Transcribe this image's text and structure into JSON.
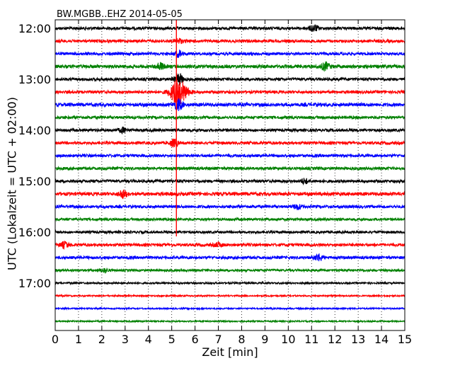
{
  "chart_data": {
    "type": "line",
    "title": "BW.MGBB..EHZ 2014-05-05",
    "xlabel": "Zeit  [min]",
    "ylabel": "UTC (Lokalzeit = UTC + 02:00)",
    "xlim": [
      0,
      15
    ],
    "x_ticks": [
      "0",
      "1",
      "2",
      "3",
      "4",
      "5",
      "6",
      "7",
      "8",
      "9",
      "10",
      "11",
      "12",
      "13",
      "14",
      "15"
    ],
    "y_ticks": [
      {
        "label": "12:00",
        "row": 0
      },
      {
        "label": "13:00",
        "row": 4
      },
      {
        "label": "14:00",
        "row": 8
      },
      {
        "label": "15:00",
        "row": 12
      },
      {
        "label": "16:00",
        "row": 16
      },
      {
        "label": "17:00",
        "row": 20
      }
    ],
    "row_interval_minutes": 15,
    "row_colors": [
      "#000000",
      "#ff0000",
      "#0000ff",
      "#008000"
    ],
    "traces": [
      {
        "start": "12:00",
        "amplitude": 1.0,
        "bursts": [
          {
            "t": 11.1,
            "amp": 2.2
          }
        ]
      },
      {
        "start": "12:15",
        "amplitude": 1.0,
        "bursts": [
          {
            "t": 5.3,
            "amp": 1.6
          }
        ]
      },
      {
        "start": "12:30",
        "amplitude": 1.0,
        "bursts": [
          {
            "t": 5.3,
            "amp": 2.0
          }
        ]
      },
      {
        "start": "12:45",
        "amplitude": 1.2,
        "bursts": [
          {
            "t": 4.5,
            "amp": 2.2
          },
          {
            "t": 11.6,
            "amp": 2.5
          }
        ]
      },
      {
        "start": "13:00",
        "amplitude": 1.0,
        "bursts": [
          {
            "t": 5.3,
            "amp": 4.0
          }
        ]
      },
      {
        "start": "13:15",
        "amplitude": 1.0,
        "bursts": [
          {
            "t": 5.3,
            "amp": 9.0
          }
        ]
      },
      {
        "start": "13:30",
        "amplitude": 1.2,
        "bursts": [
          {
            "t": 5.3,
            "amp": 3.5
          }
        ]
      },
      {
        "start": "13:45",
        "amplitude": 1.0,
        "bursts": []
      },
      {
        "start": "14:00",
        "amplitude": 1.0,
        "bursts": [
          {
            "t": 2.9,
            "amp": 1.6
          }
        ]
      },
      {
        "start": "14:15",
        "amplitude": 1.0,
        "bursts": [
          {
            "t": 5.1,
            "amp": 2.5
          }
        ]
      },
      {
        "start": "14:30",
        "amplitude": 1.0,
        "bursts": []
      },
      {
        "start": "14:45",
        "amplitude": 1.0,
        "bursts": []
      },
      {
        "start": "15:00",
        "amplitude": 1.0,
        "bursts": [
          {
            "t": 10.7,
            "amp": 1.6
          }
        ]
      },
      {
        "start": "15:15",
        "amplitude": 1.2,
        "bursts": [
          {
            "t": 2.9,
            "amp": 2.5
          }
        ]
      },
      {
        "start": "15:30",
        "amplitude": 1.0,
        "bursts": [
          {
            "t": 10.4,
            "amp": 1.6
          }
        ]
      },
      {
        "start": "15:45",
        "amplitude": 0.9,
        "bursts": []
      },
      {
        "start": "16:00",
        "amplitude": 0.9,
        "bursts": []
      },
      {
        "start": "16:15",
        "amplitude": 1.0,
        "bursts": [
          {
            "t": 0.4,
            "amp": 2.0
          },
          {
            "t": 7.0,
            "amp": 1.4
          }
        ]
      },
      {
        "start": "16:30",
        "amplitude": 1.0,
        "bursts": [
          {
            "t": 11.3,
            "amp": 2.2
          }
        ]
      },
      {
        "start": "16:45",
        "amplitude": 0.8,
        "bursts": [
          {
            "t": 2.1,
            "amp": 1.3
          }
        ]
      },
      {
        "start": "17:00",
        "amplitude": 0.6,
        "bursts": []
      },
      {
        "start": "17:15",
        "amplitude": 0.5,
        "bursts": []
      },
      {
        "start": "17:30",
        "amplitude": 0.5,
        "bursts": []
      },
      {
        "start": "17:45",
        "amplitude": 0.5,
        "bursts": []
      }
    ],
    "event_marker": {
      "x": 5.2,
      "rows": [
        0,
        16
      ],
      "color": "#ff0000"
    },
    "grid": "vertical dotted"
  }
}
